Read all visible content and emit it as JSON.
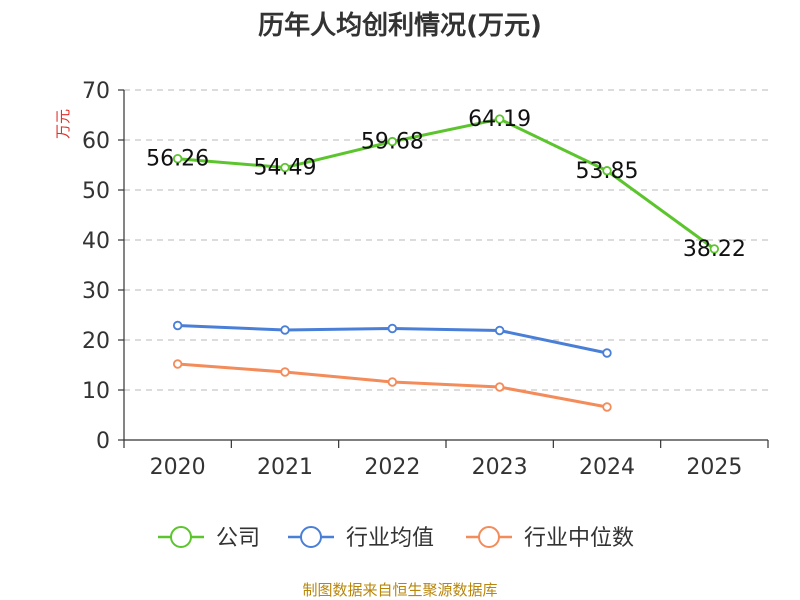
{
  "chart_data": {
    "type": "line",
    "title": "历年人均创利情况(万元)",
    "ylabel": "万元",
    "xlabel": "",
    "categories": [
      "2020",
      "2021",
      "2022",
      "2023",
      "2024",
      "2025"
    ],
    "ylim": [
      0,
      70
    ],
    "yticks": [
      "0",
      "10",
      "20",
      "30",
      "40",
      "50",
      "60",
      "70"
    ],
    "grid": true,
    "legend_position": "bottom",
    "series": [
      {
        "name": "公司",
        "color": "#5cc52e",
        "values": [
          56.26,
          54.49,
          59.68,
          64.19,
          53.85,
          38.22
        ],
        "labels": [
          "56.26",
          "54.49",
          "59.68",
          "64.19",
          "53.85",
          "38.22"
        ]
      },
      {
        "name": "行业均值",
        "color": "#4a7fd8",
        "values": [
          22.9,
          22.0,
          22.3,
          21.9,
          17.4,
          null
        ]
      },
      {
        "name": "行业中位数",
        "color": "#f38c5a",
        "values": [
          15.2,
          13.6,
          11.6,
          10.6,
          6.6,
          null
        ]
      }
    ]
  },
  "source": "制图数据来自恒生聚源数据库"
}
